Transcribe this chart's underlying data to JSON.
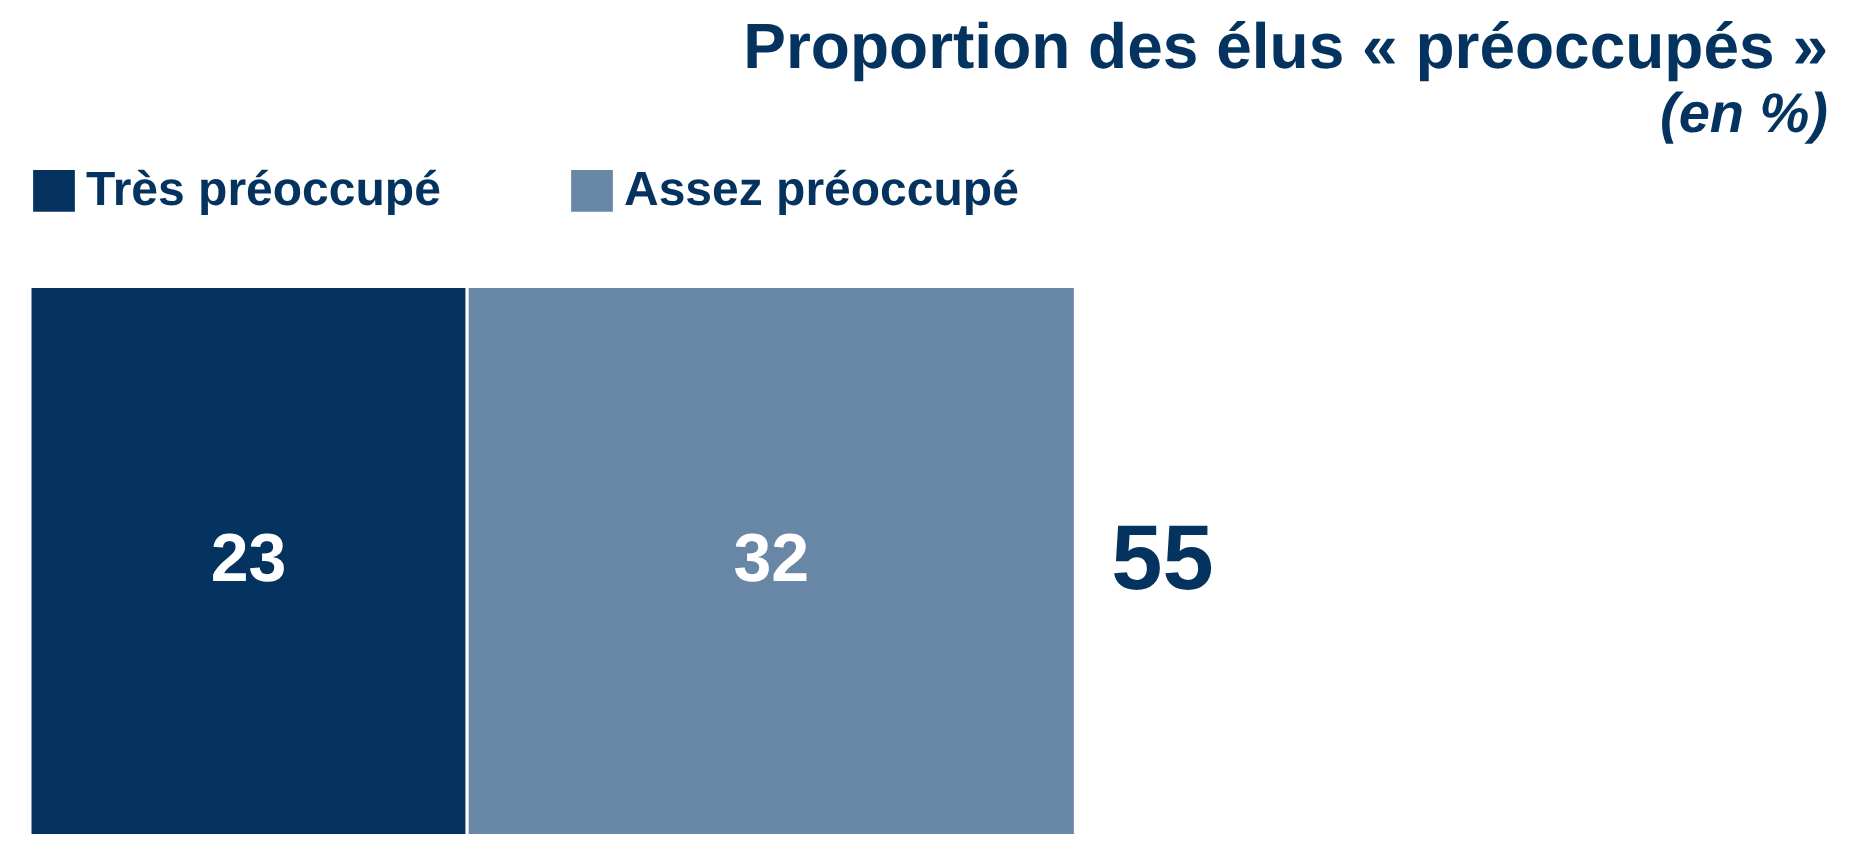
{
  "chart_data": {
    "type": "bar",
    "title": "Proportion des élus « préoccupés »",
    "subtitle": "(en %)",
    "orientation": "horizontal",
    "stacked": true,
    "categories": [
      null
    ],
    "series": [
      {
        "name": "Très préoccupé",
        "color": "#05335f",
        "values": [
          23
        ]
      },
      {
        "name": "Assez préoccupé",
        "color": "#6886a5",
        "values": [
          32
        ]
      }
    ],
    "data_labels": true,
    "totals": [
      "55"
    ],
    "legend": "top left"
  }
}
